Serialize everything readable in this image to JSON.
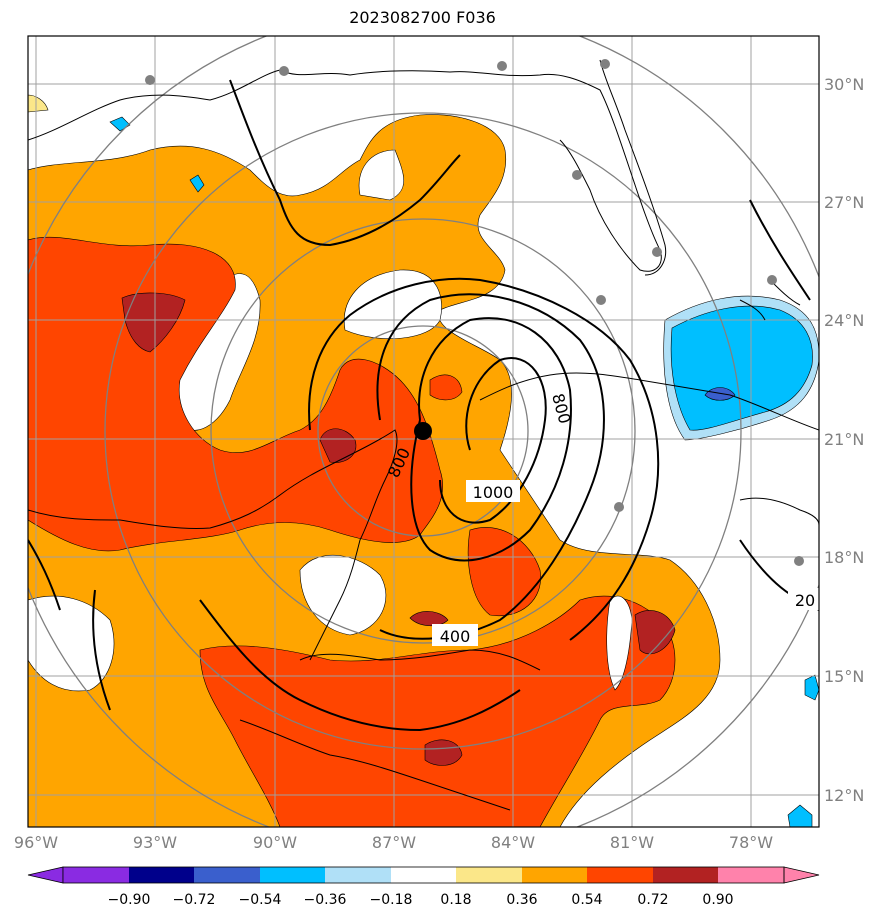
{
  "title": "2023082700 F036",
  "colors": {
    "neg090": "#8a2be2",
    "neg072": "#00008b",
    "neg054": "#3a5fcd",
    "neg036": "#00bfff",
    "neg018": "#b0e0f7",
    "zero": "#ffffff",
    "pos018": "#fbe789",
    "pos036": "#ffa500",
    "pos054": "#ff4500",
    "pos072": "#b22222",
    "pos090": "#ff82ab",
    "grid": "#a0a0a0",
    "range_ring": "#808080"
  },
  "chart_data": {
    "type": "map",
    "lon_range": [
      -96.2,
      -76.5
    ],
    "lat_range": [
      11.0,
      31.0
    ],
    "lon_ticks": [
      "96°W",
      "93°W",
      "90°W",
      "87°W",
      "84°W",
      "81°W",
      "78°W"
    ],
    "lat_ticks": [
      "30°N",
      "27°N",
      "24°N",
      "21°N",
      "18°N",
      "15°N",
      "12°N"
    ],
    "colorbar": {
      "levels": [
        "−0.90",
        "−0.72",
        "−0.54",
        "−0.36",
        "−0.18",
        "0.18",
        "0.36",
        "0.54",
        "0.72",
        "0.90"
      ],
      "extend": "both"
    },
    "contour_labels": [
      "800",
      "800",
      "1000",
      "400",
      "20"
    ],
    "center": {
      "lon": -86.3,
      "lat": 21.2
    },
    "range_rings": "concentric circles around center",
    "grid": true
  }
}
